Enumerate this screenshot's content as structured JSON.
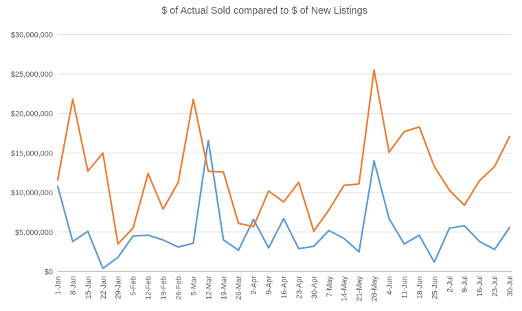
{
  "chart_data": {
    "type": "line",
    "title": "$ of Actual Sold compared to $ of New Listings",
    "legend": "none",
    "grid": true,
    "ylim": [
      0,
      30000000
    ],
    "y_tick_interval": 5000000,
    "y_tick_labels": [
      "$0",
      "$5,000,000",
      "$10,000,000",
      "$15,000,000",
      "$20,000,000",
      "$25,000,000",
      "$30,000,000"
    ],
    "categories": [
      "1-Jan",
      "8-Jan",
      "15-Jan",
      "22-Jan",
      "29-Jan",
      "5-Feb",
      "12-Feb",
      "19-Feb",
      "26-Feb",
      "5-Mar",
      "12-Mar",
      "19-Mar",
      "26-Mar",
      "2-Apr",
      "9-Apr",
      "16-Apr",
      "23-Apr",
      "30-Apr",
      "7-May",
      "14-May",
      "21-May",
      "28-May",
      "4-Jun",
      "11-Jun",
      "18-Jun",
      "25-Jun",
      "2-Jul",
      "9-Jul",
      "16-Jul",
      "23-Jul",
      "30-Jul"
    ],
    "series": [
      {
        "name": "Actual Sold",
        "color": "#5B9BD5",
        "values": [
          10800000,
          3800000,
          5100000,
          400000,
          1800000,
          4500000,
          4600000,
          4000000,
          3100000,
          3600000,
          16600000,
          4000000,
          2700000,
          6600000,
          3000000,
          6700000,
          2900000,
          3200000,
          5200000,
          4200000,
          2500000,
          14000000,
          6700000,
          3500000,
          4600000,
          1200000,
          5500000,
          5800000,
          3800000,
          2800000,
          5600000
        ]
      },
      {
        "name": "New Listings",
        "color": "#ED7D31",
        "values": [
          11600000,
          21800000,
          12700000,
          15000000,
          3500000,
          5500000,
          12400000,
          7900000,
          11300000,
          21800000,
          12700000,
          12600000,
          6100000,
          5700000,
          10200000,
          8800000,
          11300000,
          5100000,
          7800000,
          10900000,
          11100000,
          25500000,
          15100000,
          17700000,
          18300000,
          13300000,
          10300000,
          8400000,
          11500000,
          13300000,
          17100000
        ]
      }
    ],
    "colors": {
      "gridline": "#D9D9D9",
      "axis_line": "#BFBFBF",
      "text": "#595959",
      "background": "#FFFFFF"
    }
  }
}
